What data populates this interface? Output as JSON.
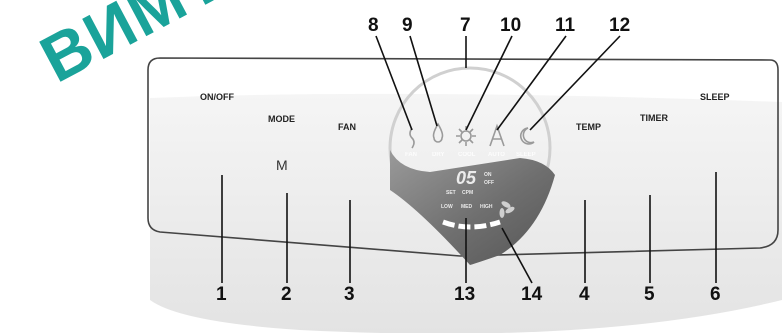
{
  "watermark": "ВИМТЕХ",
  "panel": {
    "mode_glyph": "M",
    "buttons": [
      {
        "num": "1",
        "label": "ON/OFF"
      },
      {
        "num": "2",
        "label": "MODE"
      },
      {
        "num": "3",
        "label": "FAN"
      },
      {
        "num": "4",
        "label": "TEMP"
      },
      {
        "num": "5",
        "label": "TIMER"
      },
      {
        "num": "6",
        "label": "SLEEP"
      }
    ],
    "display": {
      "numbers_top": [
        "8",
        "9",
        "7",
        "10",
        "11",
        "12"
      ],
      "icons": [
        "FAN",
        "DRY",
        "COOL",
        "AUTO",
        "SLEEP"
      ],
      "digits": "05",
      "on_off": [
        "ON",
        "OFF"
      ],
      "set_cpm": [
        "SET",
        "CPM"
      ],
      "speeds": [
        "LOW",
        "MED",
        "HIGH"
      ],
      "numbers_bottom": [
        "13",
        "14"
      ]
    }
  }
}
